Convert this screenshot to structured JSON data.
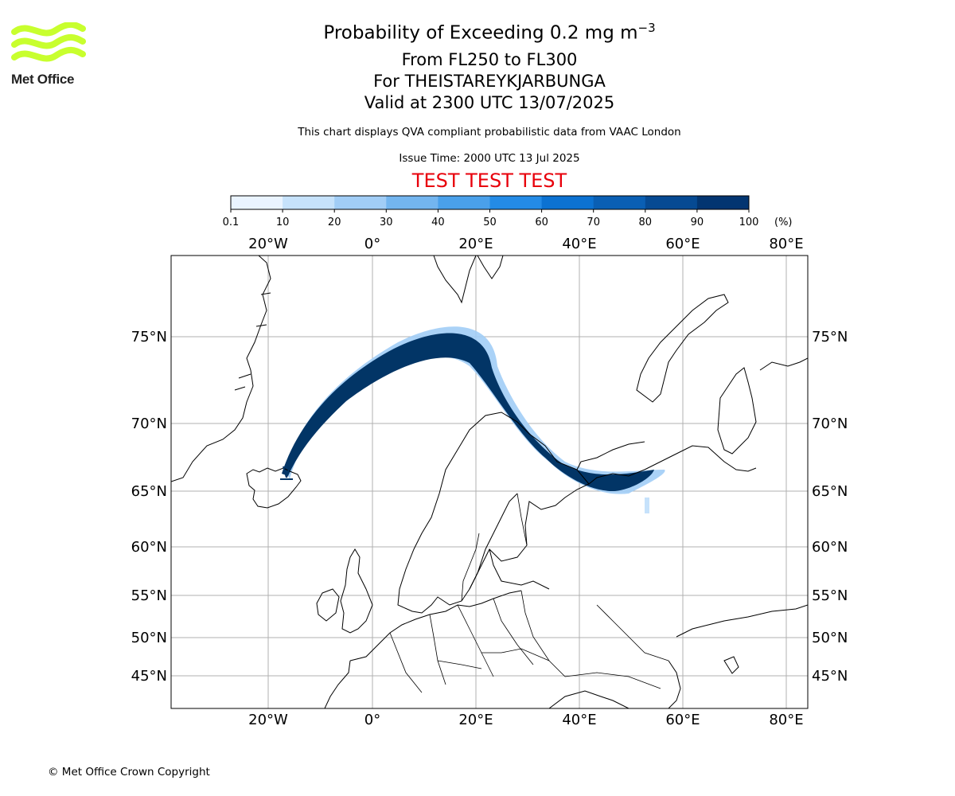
{
  "logo": {
    "text": "Met Office",
    "color": "#c8ff2e"
  },
  "header": {
    "title": "Probability of Exceeding 0.2 mg m",
    "title_superscript": "−3",
    "line1": "From FL250 to FL300",
    "line2": "For THEISTAREYKJARBUNGA",
    "line3": "Valid at 2300 UTC 13/07/2025",
    "disclaimer": "This chart displays QVA compliant probabilistic data from VAAC London",
    "issue_time": "Issue Time: 2000 UTC 13 Jul 2025",
    "test_banner": "TEST TEST TEST",
    "test_banner_color": "#e8000b"
  },
  "colorbar": {
    "tick_labels": [
      "0.1",
      "10",
      "20",
      "30",
      "40",
      "50",
      "60",
      "70",
      "80",
      "90",
      "100"
    ],
    "unit_label": "(%)",
    "colors": [
      "#eaf4ff",
      "#c6e2fb",
      "#a1cdf6",
      "#73b5ef",
      "#4aa0ea",
      "#248be6",
      "#0c72d2",
      "#0a5fb4",
      "#064a93",
      "#033571"
    ]
  },
  "map": {
    "lon_labels": [
      "20°W",
      "0°",
      "20°E",
      "40°E",
      "60°E",
      "80°E"
    ],
    "lat_labels": [
      "75°N",
      "70°N",
      "65°N",
      "60°N",
      "55°N",
      "50°N",
      "45°N"
    ],
    "plume_color": "#023566",
    "coast_color": "#000000",
    "grid_color": "#b0b0b0"
  },
  "footer": {
    "copyright": "© Met Office Crown Copyright"
  }
}
